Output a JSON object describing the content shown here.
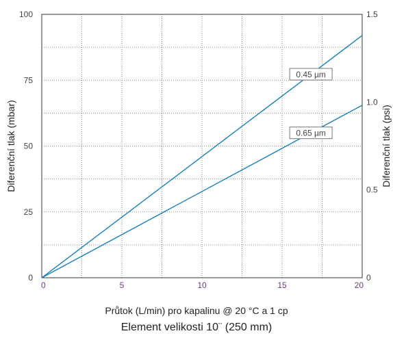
{
  "chart_data": {
    "type": "line",
    "xlabel": "Průtok (L/min) pro kapalinu @ 20 °C a 1 cp",
    "subtitle": "Element velikosti 10¨ (250 mm)",
    "ylabel_left": "Diferenční tlak (mbar)",
    "ylabel_right": "Diferenční tlak (psi)",
    "xlim": [
      0,
      20
    ],
    "ylim_left": [
      0,
      100
    ],
    "ylim_right": [
      0,
      1.5
    ],
    "x_ticks": [
      "0",
      "5",
      "10",
      "15",
      "20"
    ],
    "x_tick_values": [
      0,
      5,
      10,
      15,
      20
    ],
    "y_left_ticks": [
      "0",
      "25",
      "50",
      "75",
      "100"
    ],
    "y_left_tick_values": [
      0,
      25,
      50,
      75,
      100
    ],
    "y_right_ticks": [
      "0",
      "0.5",
      "1.0",
      "1.5"
    ],
    "y_right_tick_values": [
      0,
      0.5,
      1.0,
      1.5
    ],
    "grid": true,
    "series": [
      {
        "name": "0.45 µm",
        "x": [
          0,
          20
        ],
        "y": [
          0,
          92
        ],
        "color": "#1a7fb5"
      },
      {
        "name": "0.65 µm",
        "x": [
          0,
          20
        ],
        "y": [
          0,
          65.5
        ],
        "color": "#1a7fb5"
      }
    ],
    "annotations": [
      {
        "text": "0.45 µm",
        "series": 0,
        "at_x": 16.8
      },
      {
        "text": "0.65 µm",
        "series": 1,
        "at_x": 16.8
      }
    ]
  }
}
